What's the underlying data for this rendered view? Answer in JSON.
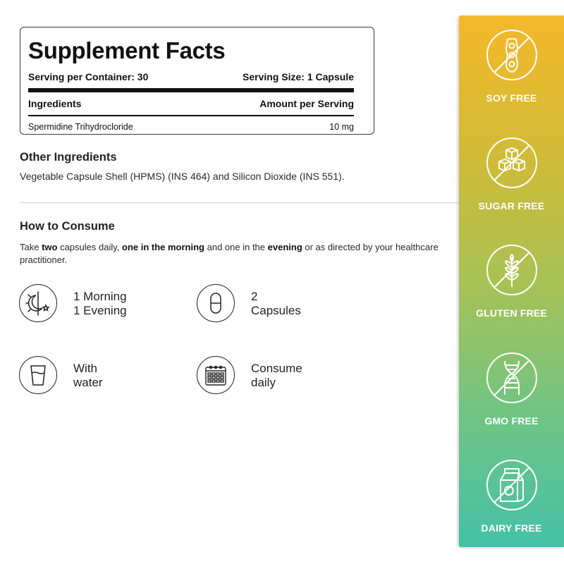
{
  "facts": {
    "title": "Supplement Facts",
    "serving_per_container": "Serving per Container: 30",
    "serving_size": "Serving Size: 1 Capsule",
    "ingredients_header": "Ingredients",
    "amount_header": "Amount per Serving",
    "items": [
      {
        "name": "Spermidine Trihydrocloride",
        "amount": "10 mg"
      }
    ]
  },
  "other": {
    "title": "Other Ingredients",
    "text": "Vegetable Capsule Shell (HPMS) (INS 464) and Silicon Dioxide (INS 551)."
  },
  "consume": {
    "title": "How to Consume",
    "text_parts": [
      "Take ",
      "two",
      " capsules daily, ",
      "one in the morning",
      " and one in the ",
      "evening",
      " or as directed by your healthcare practitioner."
    ],
    "tiles": [
      {
        "icon": "day-night-icon",
        "line1": "1 Morning",
        "line2": "1 Evening"
      },
      {
        "icon": "capsule-icon",
        "line1": "2",
        "line2": "Capsules"
      },
      {
        "icon": "water-glass-icon",
        "line1": "With",
        "line2": "water"
      },
      {
        "icon": "calendar-icon",
        "line1": "Consume",
        "line2": "daily"
      }
    ]
  },
  "badges": [
    {
      "icon": "soybean-icon",
      "label": "SOY FREE"
    },
    {
      "icon": "sugar-cubes-icon",
      "label": "SUGAR FREE"
    },
    {
      "icon": "wheat-icon",
      "label": "GLUTEN FREE"
    },
    {
      "icon": "dna-icon",
      "label": "GMO FREE"
    },
    {
      "icon": "milk-carton-icon",
      "label": "DAIRY FREE"
    }
  ],
  "colors": {
    "panel_top": "#f4b82a",
    "panel_bottom": "#44c2a7",
    "text": "#1c1c1c"
  }
}
